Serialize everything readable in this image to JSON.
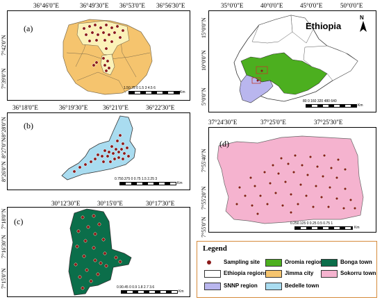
{
  "panels": {
    "a": {
      "label": "(a)",
      "top_coords": [
        "36°46'0\"E",
        "36°49'30\"E",
        "36°53'0\"E",
        "36°56'30\"E"
      ],
      "left_coords": [
        "7°42'0\"N",
        "7°39'0\"N"
      ],
      "scale": {
        "ticks": "1.50.75 0   1.5     3       4.5     6",
        "unit": "Km"
      }
    },
    "b": {
      "label": "(b)",
      "top_coords": [
        "36°18'0\"E",
        "36°19'30\"E",
        "36°21'0\"E",
        "36°22'30\"E"
      ],
      "left_coords": [
        "8°28'0\"N",
        "8°27'0\"N",
        "8°26'0\"N"
      ],
      "scale": {
        "ticks": "0.750.375 0    0.75    1.5     2.25    3",
        "unit": "Km"
      }
    },
    "c": {
      "label": "(c)",
      "top_coords": [
        "30°12'30\"E",
        "30°15'0\"E",
        "30°17'30\"E"
      ],
      "left_coords": [
        "7°18'0\"N",
        "7°16'30\"N",
        "7°15'0\"N"
      ],
      "scale": {
        "ticks": "0.90.45 0    0.9     1.8     2.7     3.6",
        "unit": "Km"
      }
    },
    "d": {
      "label": "(d)",
      "top_coords": [
        "37°24'30\"E",
        "37°25'0\"E",
        "37°25'30\"E"
      ],
      "left_coords": [
        "7°55'40\"N",
        "7°55'20\"N",
        "7°55'0\"N"
      ],
      "scale": {
        "ticks": "0.250.125 0   0.25    0.5    0.75     1",
        "unit": "Km"
      }
    },
    "ethiopia": {
      "title": "Ethiopia",
      "north": "N",
      "top_coords": [
        "35°0'0\"E",
        "40°0'0\"E",
        "45°0'0\"E",
        "50°0'0\"E"
      ],
      "left_coords": [
        "15°0'0\"N",
        "10°0'0\"N",
        "5°0'0\"N"
      ],
      "scale": {
        "ticks": "80 0  160  320  480  640",
        "unit": "Km"
      }
    }
  },
  "legend": {
    "title": "Legend",
    "items": [
      {
        "label": "Sampling site",
        "kind": "dot",
        "color": "#8b1a1a"
      },
      {
        "label": "Oromia region",
        "kind": "swatch",
        "color": "#4caf1f"
      },
      {
        "label": "Bonga town",
        "kind": "swatch",
        "color": "#0b6e4a"
      },
      {
        "label": "Ethiopia regions",
        "kind": "swatch",
        "color": "#ffffff"
      },
      {
        "label": "Jimma city",
        "kind": "swatch",
        "color": "#f5c46e"
      },
      {
        "label": "Sokorru town",
        "kind": "swatch",
        "color": "#f5b3cf"
      },
      {
        "label": "SNNP region",
        "kind": "swatch",
        "color": "#b9b6ee"
      },
      {
        "label": "Bedelle town",
        "kind": "swatch",
        "color": "#a9dcf0"
      }
    ]
  },
  "colors": {
    "site": "#8b1a1a",
    "jimma": "#f5c46e",
    "jimma_core": "#fbf2b8",
    "bedelle": "#a9dcf0",
    "bonga": "#0b6e4a",
    "sokorru": "#f5b3cf",
    "oromia": "#4caf1f",
    "snnp": "#b9b6ee",
    "legend_border": "#d58a3a"
  }
}
